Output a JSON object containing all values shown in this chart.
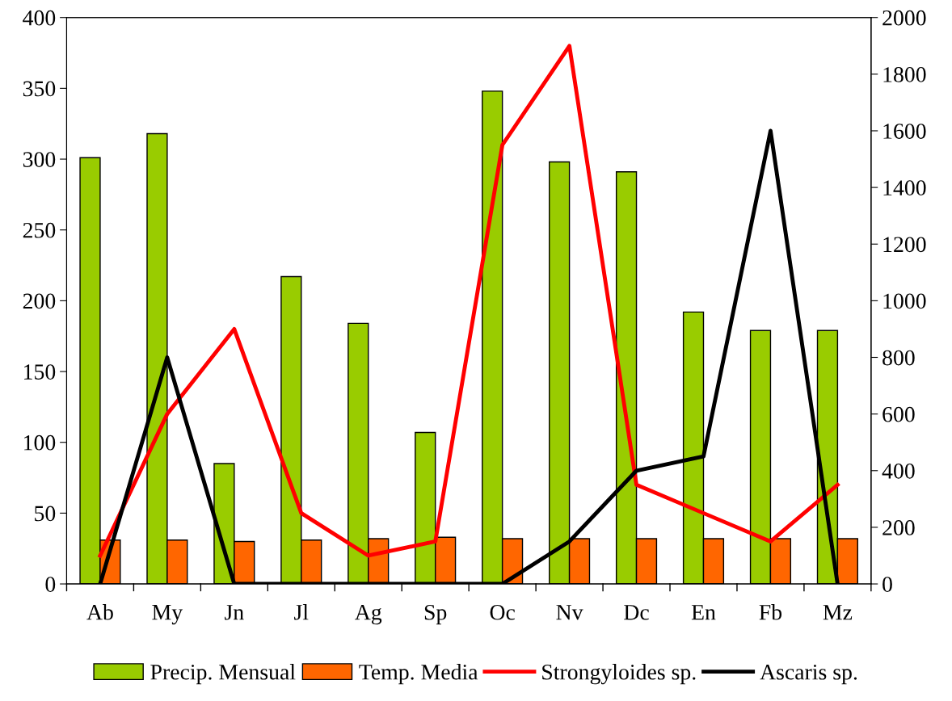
{
  "chart_data": {
    "type": "bar",
    "categories": [
      "Ab",
      "My",
      "Jn",
      "Jl",
      "Ag",
      "Sp",
      "Oc",
      "Nv",
      "Dc",
      "En",
      "Fb",
      "Mz"
    ],
    "series": [
      {
        "name": "Precip. Mensual",
        "color": "#99cc00",
        "values": [
          301,
          318,
          85,
          217,
          184,
          107,
          348,
          298,
          291,
          192,
          179,
          179
        ]
      },
      {
        "name": "Temp. Media",
        "color": "#ff6600",
        "values": [
          31,
          31,
          30,
          31,
          32,
          33,
          32,
          32,
          32,
          32,
          32,
          32
        ]
      },
      {
        "name": "Strongyloides sp.",
        "type": "line",
        "axis": "y2",
        "color": "#ff0000",
        "values": [
          100,
          600,
          900,
          250,
          100,
          150,
          1550,
          1900,
          350,
          250,
          150,
          350
        ]
      },
      {
        "name": "Ascaris sp.",
        "type": "line",
        "axis": "y2",
        "color": "#000000",
        "values": [
          0,
          800,
          0,
          0,
          0,
          0,
          0,
          150,
          400,
          450,
          1600,
          0
        ]
      }
    ],
    "ylim": [
      0,
      400
    ],
    "yticks": [
      0,
      50,
      100,
      150,
      200,
      250,
      300,
      350,
      400
    ],
    "y2lim": [
      0,
      2000
    ],
    "y2ticks": [
      0,
      200,
      400,
      600,
      800,
      1000,
      1200,
      1400,
      1600,
      1800,
      2000
    ],
    "grid": false,
    "legend": "bottom",
    "marker": "none",
    "line_style": "solid"
  }
}
